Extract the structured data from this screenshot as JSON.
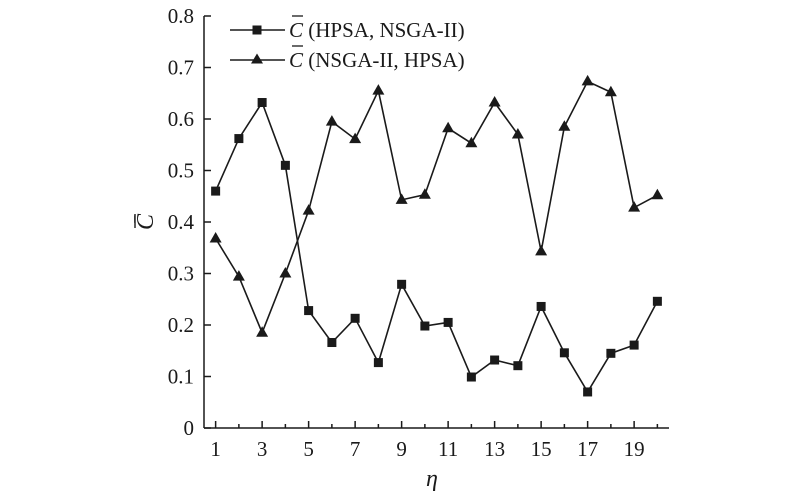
{
  "chart_data": {
    "type": "line",
    "xlabel": "η",
    "ylabel": "C̄",
    "xlim": [
      0.5,
      20.5
    ],
    "ylim": [
      0,
      0.8
    ],
    "xticks": [
      1,
      3,
      5,
      7,
      9,
      11,
      13,
      15,
      17,
      19
    ],
    "yticks": [
      0,
      0.1,
      0.2,
      0.3,
      0.4,
      0.5,
      0.6,
      0.7,
      0.8
    ],
    "ytick_labels": [
      "0",
      "0.1",
      "0.2",
      "0.3",
      "0.4",
      "0.5",
      "0.6",
      "0.7",
      "0.8"
    ],
    "grid": false,
    "legend_position": "top-left",
    "x": [
      1,
      2,
      3,
      4,
      5,
      6,
      7,
      8,
      9,
      10,
      11,
      12,
      13,
      14,
      15,
      16,
      17,
      18,
      19,
      20
    ],
    "series": [
      {
        "name": "C̄ (HPSA, NSGA-II)",
        "legend_symbol": "C",
        "legend_text": " (HPSA, NSGA-II)",
        "marker": "square",
        "color": "#1a1a1a",
        "values": [
          0.46,
          0.562,
          0.632,
          0.51,
          0.228,
          0.166,
          0.213,
          0.127,
          0.279,
          0.198,
          0.205,
          0.099,
          0.132,
          0.121,
          0.236,
          0.146,
          0.07,
          0.145,
          0.161,
          0.246
        ]
      },
      {
        "name": "C̄ (NSGA-II, HPSA)",
        "legend_symbol": "C",
        "legend_text": " (NSGA-II, HPSA)",
        "marker": "triangle",
        "color": "#1a1a1a",
        "values": [
          0.368,
          0.294,
          0.185,
          0.3,
          0.422,
          0.595,
          0.561,
          0.655,
          0.443,
          0.453,
          0.582,
          0.553,
          0.632,
          0.57,
          0.343,
          0.585,
          0.673,
          0.652,
          0.428,
          0.452
        ]
      }
    ]
  }
}
